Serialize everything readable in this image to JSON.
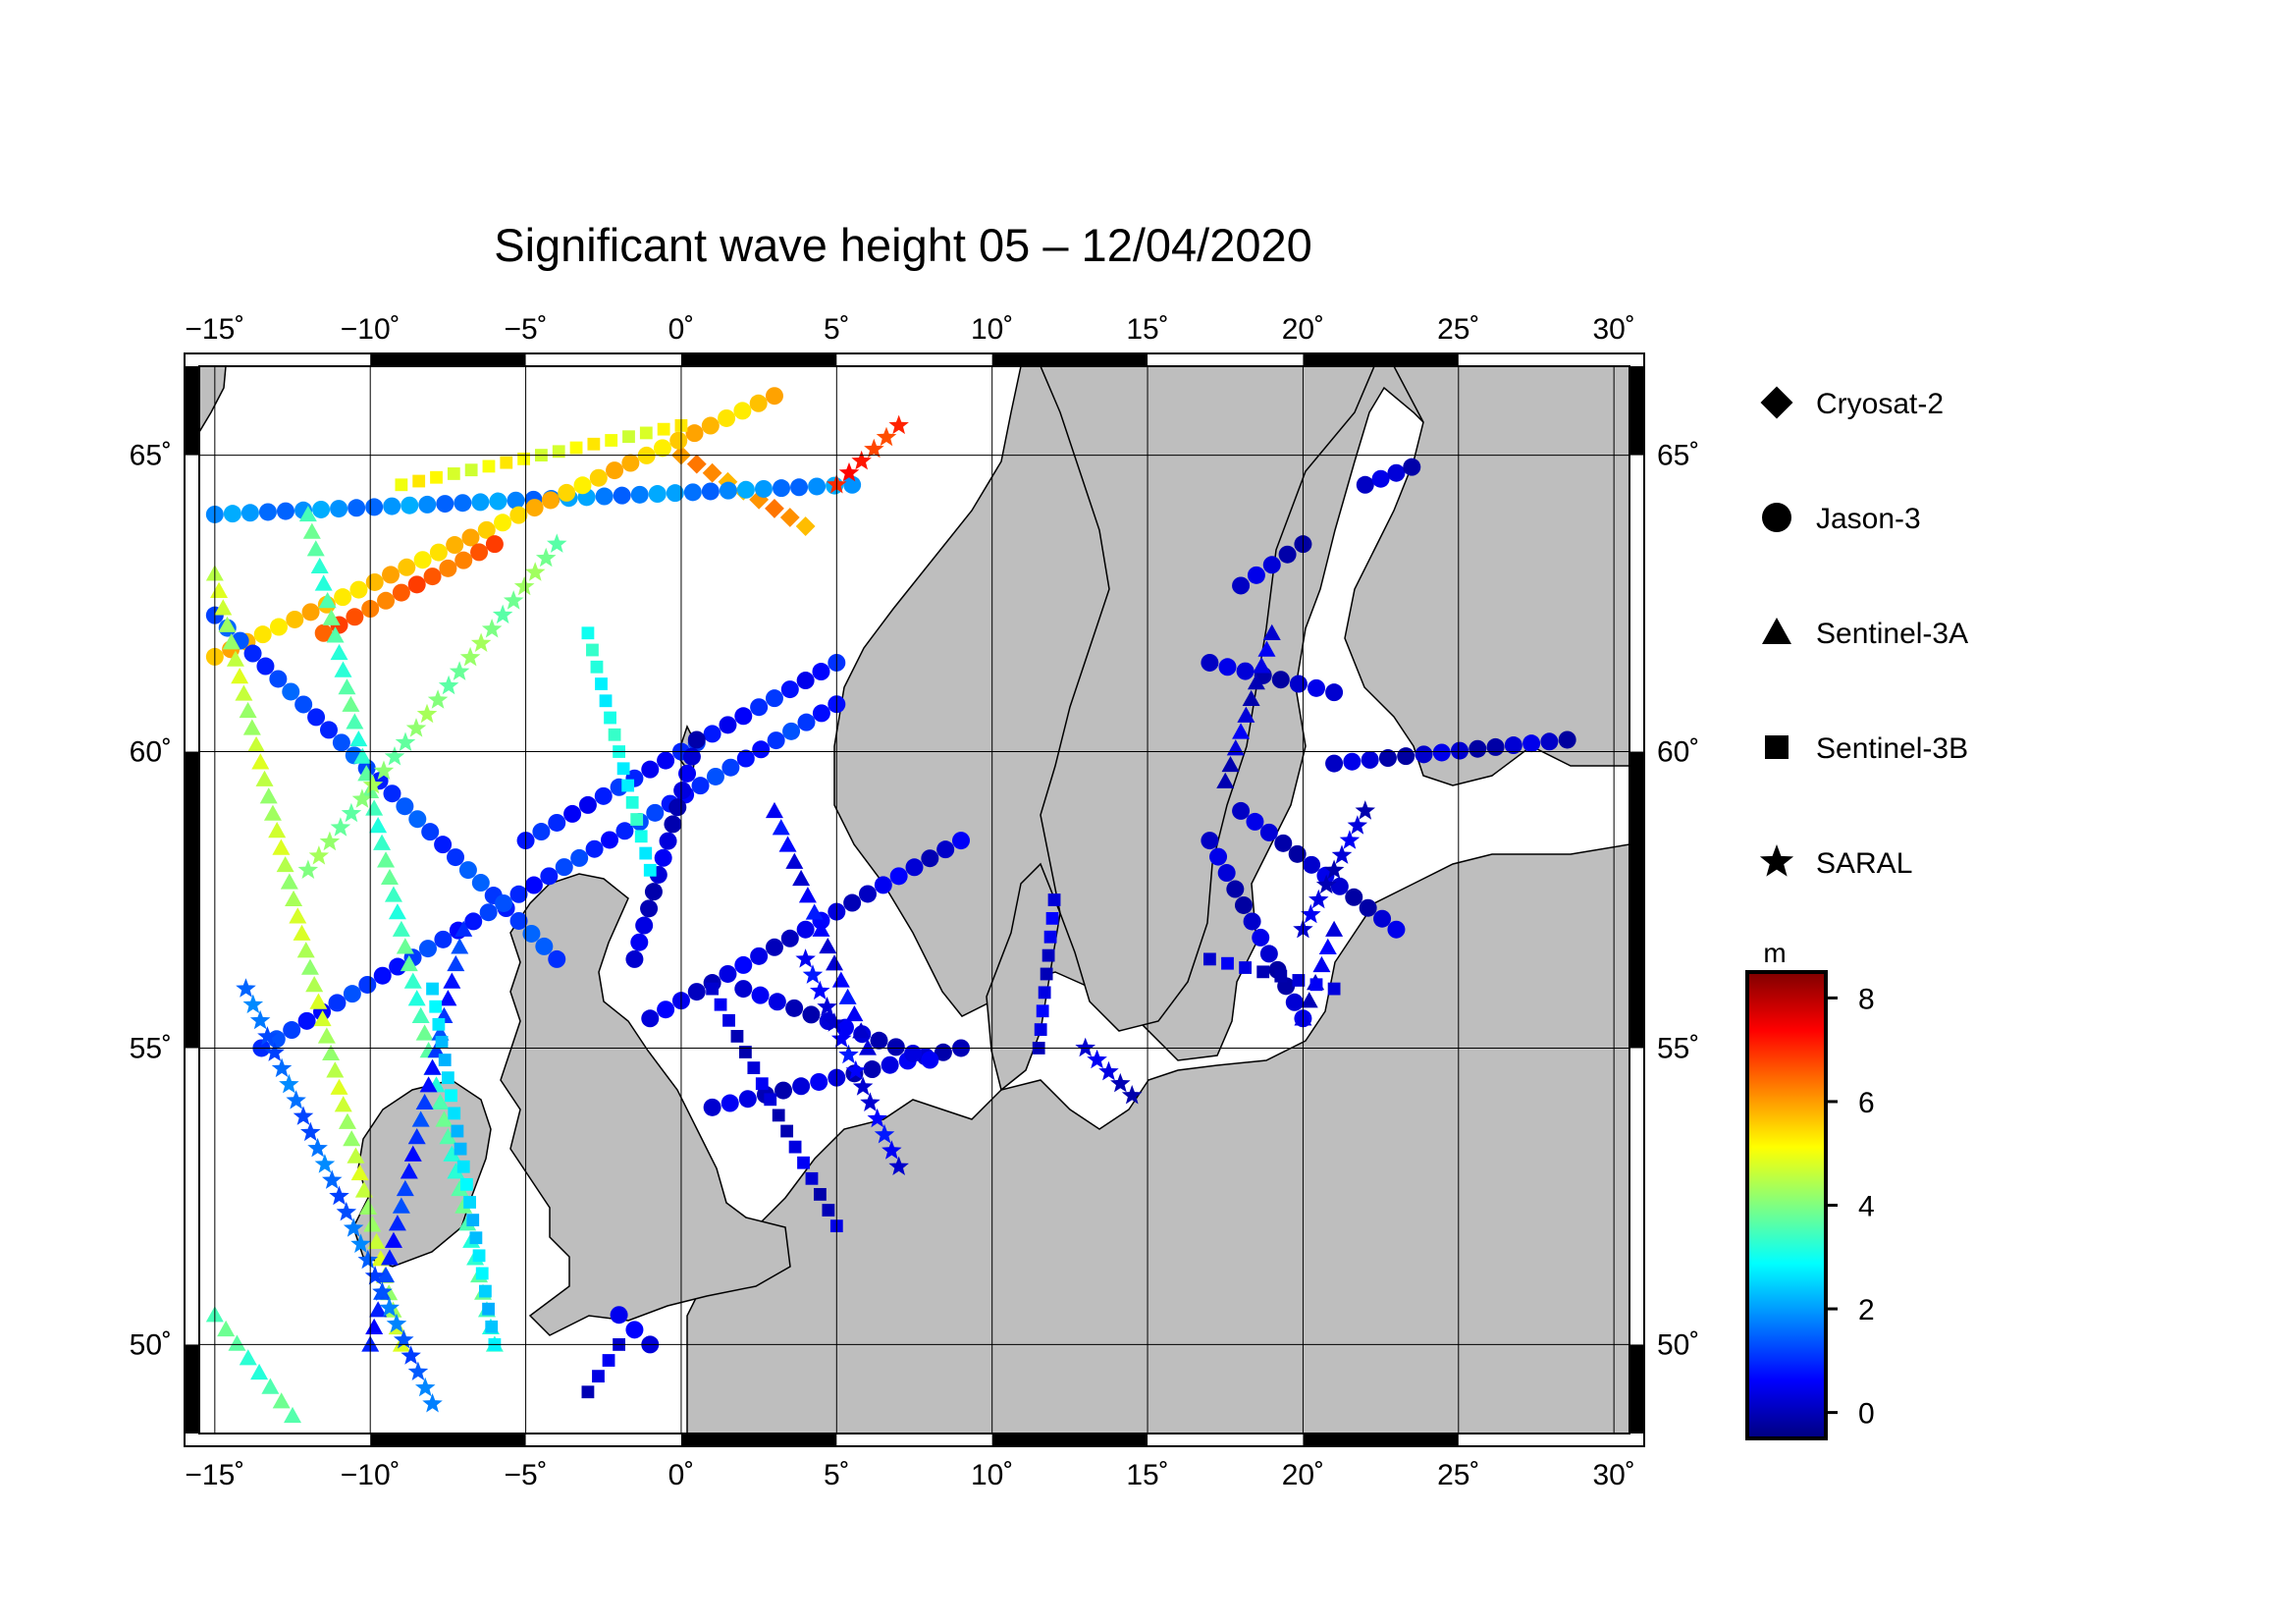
{
  "title": "Significant wave height 05 – 12/04/2020",
  "map": {
    "lon_ticks": [
      "−15",
      "−10",
      "−5",
      "0",
      "5",
      "10",
      "15",
      "20",
      "25",
      "30"
    ],
    "lat_ticks": [
      "65",
      "60",
      "55",
      "50"
    ],
    "degree_symbol": "˚",
    "extent": {
      "lon_min": -15.5,
      "lon_max": 30.5,
      "lat_min": 48.5,
      "lat_max": 66.5
    },
    "land_color": "#bebebe",
    "sea_color": "#ffffff"
  },
  "legend": {
    "items": [
      {
        "label": "Cryosat-2",
        "symbol": "diamond-icon"
      },
      {
        "label": "Jason-3",
        "symbol": "circle-icon"
      },
      {
        "label": "Sentinel-3A",
        "symbol": "triangle-icon"
      },
      {
        "label": "Sentinel-3B",
        "symbol": "square-icon"
      },
      {
        "label": "SARAL",
        "symbol": "star-icon"
      }
    ]
  },
  "colorbar": {
    "unit": "m",
    "ticks": [
      "8",
      "6",
      "4",
      "2",
      "0"
    ],
    "range": [
      -0.5,
      8.5
    ],
    "colors": [
      "#000080",
      "#0000ff",
      "#0080ff",
      "#00ffff",
      "#80ff80",
      "#ffff00",
      "#ff8000",
      "#ff0000",
      "#800000"
    ]
  },
  "chart_data": {
    "type": "scatter",
    "title": "Significant wave height 05 – 12/04/2020",
    "xlabel": "",
    "ylabel": "",
    "xlim": [
      -15.5,
      30.5
    ],
    "ylim": [
      48.5,
      66.5
    ],
    "color_unit": "m",
    "color_range": [
      -0.5,
      8.5
    ],
    "series": [
      {
        "name": "Cryosat-2",
        "symbol": "diamond",
        "tracks": [
          {
            "from": [
              0.0,
              65.0
            ],
            "to": [
              4.0,
              63.8
            ],
            "hs": 6.0
          }
        ]
      },
      {
        "name": "Jason-3",
        "symbol": "circle",
        "tracks": [
          {
            "from": [
              -15.0,
              64.0
            ],
            "to": [
              5.5,
              64.5
            ],
            "hs": 1.8
          },
          {
            "from": [
              -15.0,
              61.6
            ],
            "to": [
              3.0,
              66.0
            ],
            "hs": 5.6
          },
          {
            "from": [
              -11.5,
              62.0
            ],
            "to": [
              -6.0,
              63.5
            ],
            "hs": 6.5
          },
          {
            "from": [
              -15.0,
              62.3
            ],
            "to": [
              -4.0,
              56.5
            ],
            "hs": 1.2
          },
          {
            "from": [
              -5.0,
              58.5
            ],
            "to": [
              5.0,
              61.5
            ],
            "hs": 0.8
          },
          {
            "from": [
              -13.5,
              55.0
            ],
            "to": [
              5.0,
              60.8
            ],
            "hs": 1.0
          },
          {
            "from": [
              -1.5,
              56.5
            ],
            "to": [
              0.5,
              60.2
            ],
            "hs": 0.2
          },
          {
            "from": [
              -1.0,
              55.5
            ],
            "to": [
              9.0,
              58.5
            ],
            "hs": 0.3
          },
          {
            "from": [
              1.0,
              54.0
            ],
            "to": [
              9.0,
              55.0
            ],
            "hs": 0.2
          },
          {
            "from": [
              2.0,
              56.0
            ],
            "to": [
              8.0,
              54.8
            ],
            "hs": 0.2
          },
          {
            "from": [
              -1.0,
              50.0
            ],
            "to": [
              -2.0,
              50.5
            ],
            "hs": 0.3
          },
          {
            "from": [
              17.0,
              58.5
            ],
            "to": [
              20.0,
              55.5
            ],
            "hs": 0.1
          },
          {
            "from": [
              18.0,
              59.0
            ],
            "to": [
              23.0,
              57.0
            ],
            "hs": 0.1
          },
          {
            "from": [
              21.0,
              59.8
            ],
            "to": [
              28.5,
              60.2
            ],
            "hs": 0.1
          },
          {
            "from": [
              17.0,
              61.5
            ],
            "to": [
              21.0,
              61.0
            ],
            "hs": 0.1
          },
          {
            "from": [
              18.0,
              62.8
            ],
            "to": [
              20.0,
              63.5
            ],
            "hs": 0.1
          },
          {
            "from": [
              22.0,
              64.5
            ],
            "to": [
              23.5,
              64.8
            ],
            "hs": 0.1
          }
        ]
      },
      {
        "name": "Sentinel-3A",
        "symbol": "triangle",
        "tracks": [
          {
            "from": [
              -15.0,
              63.0
            ],
            "to": [
              -9.0,
              50.0
            ],
            "hs": 4.5
          },
          {
            "from": [
              -12.0,
              64.0
            ],
            "to": [
              -6.0,
              50.0
            ],
            "hs": 3.5
          },
          {
            "from": [
              -15.0,
              50.5
            ],
            "to": [
              -12.5,
              48.8
            ],
            "hs": 3.5
          },
          {
            "from": [
              -7.0,
              57.0
            ],
            "to": [
              -10.0,
              50.0
            ],
            "hs": 1.0
          },
          {
            "from": [
              3.0,
              59.0
            ],
            "to": [
              6.0,
              55.0
            ],
            "hs": 0.5
          },
          {
            "from": [
              19.0,
              62.0
            ],
            "to": [
              17.5,
              59.5
            ],
            "hs": 0.2
          },
          {
            "from": [
              21.0,
              57.0
            ],
            "to": [
              20.0,
              55.5
            ],
            "hs": 0.3
          }
        ]
      },
      {
        "name": "Sentinel-3B",
        "symbol": "square",
        "tracks": [
          {
            "from": [
              -9.0,
              64.5
            ],
            "to": [
              0.0,
              65.5
            ],
            "hs": 5.0
          },
          {
            "from": [
              -3.0,
              62.0
            ],
            "to": [
              -1.0,
              58.0
            ],
            "hs": 3.0
          },
          {
            "from": [
              1.0,
              56.0
            ],
            "to": [
              5.0,
              52.0
            ],
            "hs": 0.2
          },
          {
            "from": [
              12.0,
              57.5
            ],
            "to": [
              11.5,
              55.0
            ],
            "hs": 0.3
          },
          {
            "from": [
              17.0,
              56.5
            ],
            "to": [
              21.0,
              56.0
            ],
            "hs": 0.2
          },
          {
            "from": [
              -8.0,
              56.0
            ],
            "to": [
              -6.0,
              50.0
            ],
            "hs": 2.5
          },
          {
            "from": [
              -2.0,
              50.0
            ],
            "to": [
              -3.0,
              49.2
            ],
            "hs": 0.2
          }
        ]
      },
      {
        "name": "SARAL",
        "symbol": "star",
        "tracks": [
          {
            "from": [
              -12.0,
              58.0
            ],
            "to": [
              -4.0,
              63.5
            ],
            "hs": 4.0
          },
          {
            "from": [
              -14.0,
              56.0
            ],
            "to": [
              -8.0,
              49.0
            ],
            "hs": 1.5
          },
          {
            "from": [
              4.0,
              56.5
            ],
            "to": [
              7.0,
              53.0
            ],
            "hs": 0.5
          },
          {
            "from": [
              13.0,
              55.0
            ],
            "to": [
              14.5,
              54.2
            ],
            "hs": 0.2
          },
          {
            "from": [
              5.0,
              64.5
            ],
            "to": [
              7.0,
              65.5
            ],
            "hs": 7.0
          },
          {
            "from": [
              20.0,
              57.0
            ],
            "to": [
              22.0,
              59.0
            ],
            "hs": 0.2
          }
        ]
      }
    ]
  }
}
